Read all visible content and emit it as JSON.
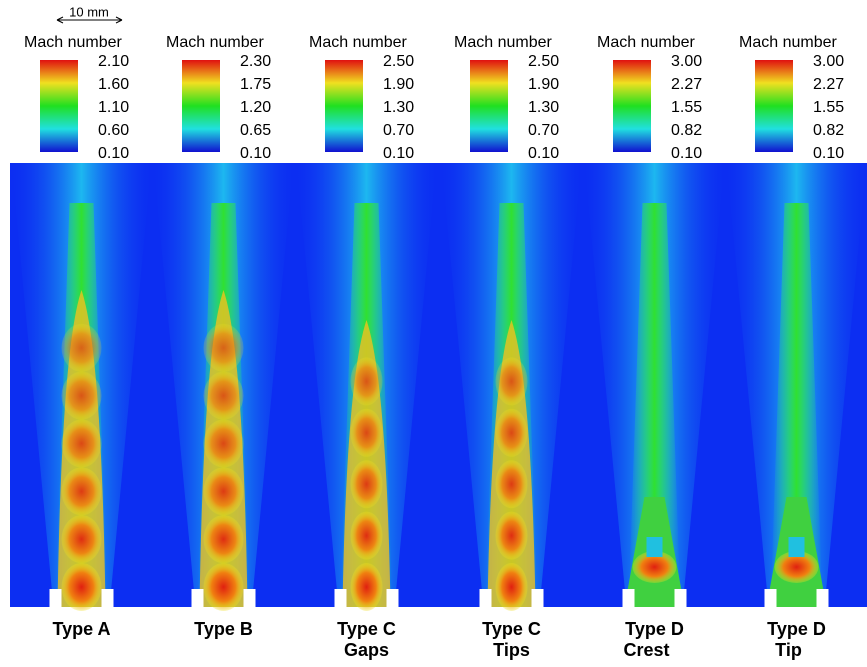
{
  "scale_bar": "10 mm",
  "panels": [
    {
      "colorbar_title": "Mach number",
      "colorbar_ticks": [
        "2.10",
        "1.60",
        "1.10",
        "0.60",
        "0.10"
      ],
      "label": [
        "Type A"
      ]
    },
    {
      "colorbar_title": "Mach number",
      "colorbar_ticks": [
        "2.30",
        "1.75",
        "1.20",
        "0.65",
        "0.10"
      ],
      "label": [
        "Type B"
      ]
    },
    {
      "colorbar_title": "Mach number",
      "colorbar_ticks": [
        "2.50",
        "1.90",
        "1.30",
        "0.70",
        "0.10"
      ],
      "label": [
        "Type C",
        "Gaps"
      ]
    },
    {
      "colorbar_title": "Mach number",
      "colorbar_ticks": [
        "2.50",
        "1.90",
        "1.30",
        "0.70",
        "0.10"
      ],
      "label": [
        "Type C",
        "Tips"
      ]
    },
    {
      "colorbar_title": "Mach number",
      "colorbar_ticks": [
        "3.00",
        "2.27",
        "1.55",
        "0.82",
        "0.10"
      ],
      "label": [
        "Type D",
        "Crest"
      ]
    },
    {
      "colorbar_title": "Mach number",
      "colorbar_ticks": [
        "3.00",
        "2.27",
        "1.55",
        "0.82",
        "0.10"
      ],
      "label": [
        "Type D",
        "Tip"
      ]
    }
  ]
}
